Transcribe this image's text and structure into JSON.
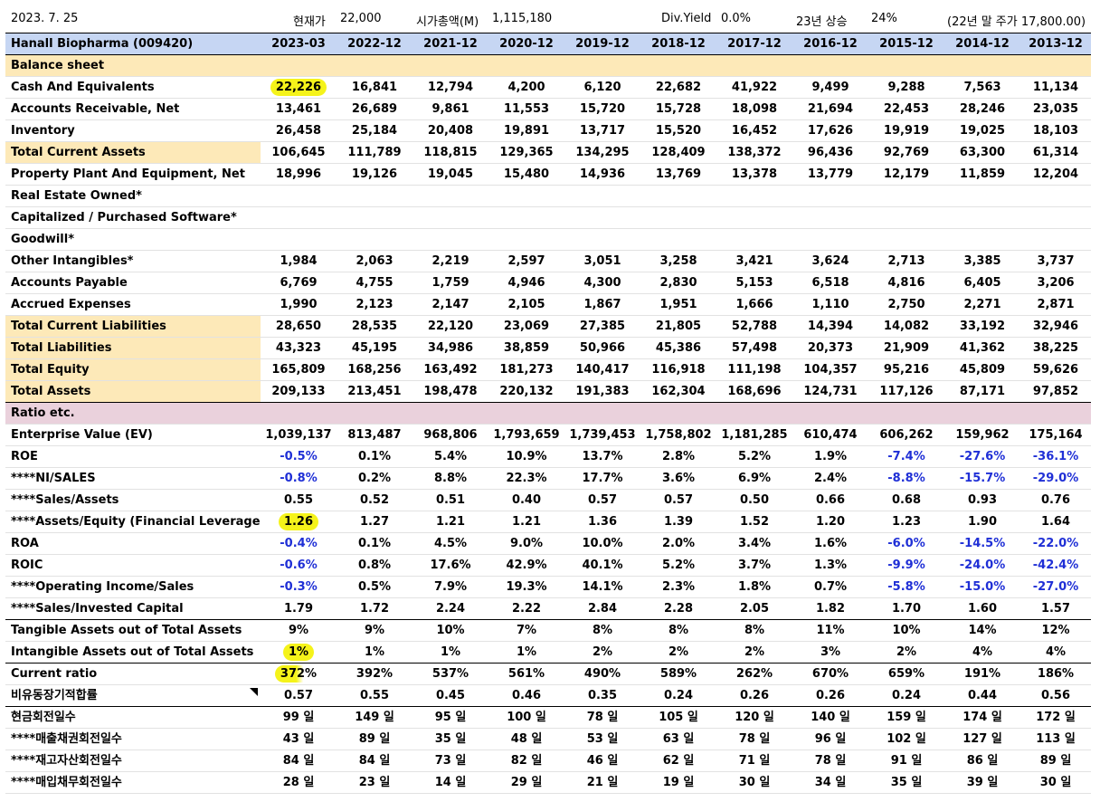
{
  "top": {
    "date": "2023. 7. 25",
    "price_label": "현재가",
    "price_value": "22,000",
    "mcap_label": "시가총액(M)",
    "mcap_value": "1,115,180",
    "div_label": "Div.Yield",
    "div_value": "0.0%",
    "rise_label": "23년 상승",
    "rise_value": "24%",
    "prev_price_note": "(22년 말 주가 17,800.00)"
  },
  "header": {
    "company": "Hanall Biopharma (009420)",
    "periods": [
      "2023-03",
      "2022-12",
      "2021-12",
      "2020-12",
      "2019-12",
      "2018-12",
      "2017-12",
      "2016-12",
      "2015-12",
      "2014-12",
      "2013-12"
    ]
  },
  "sections": {
    "balance_sheet": "Balance sheet",
    "ratio": "Ratio etc."
  },
  "rows": [
    {
      "label": "Cash And Equivalents",
      "values": [
        "22,226",
        "16,841",
        "12,794",
        "4,200",
        "6,120",
        "22,682",
        "41,922",
        "9,499",
        "9,288",
        "7,563",
        "11,134"
      ]
    },
    {
      "label": "Accounts Receivable, Net",
      "values": [
        "13,461",
        "26,689",
        "9,861",
        "11,553",
        "15,720",
        "15,728",
        "18,098",
        "21,694",
        "22,453",
        "28,246",
        "23,035"
      ]
    },
    {
      "label": "Inventory",
      "values": [
        "26,458",
        "25,184",
        "20,408",
        "19,891",
        "13,717",
        "15,520",
        "16,452",
        "17,626",
        "19,919",
        "19,025",
        "18,103"
      ]
    },
    {
      "label": "Total Current Assets",
      "values": [
        "106,645",
        "111,789",
        "118,815",
        "129,365",
        "134,295",
        "128,409",
        "138,372",
        "96,436",
        "92,769",
        "63,300",
        "61,314"
      ]
    },
    {
      "label": "Property Plant And Equipment, Net",
      "values": [
        "18,996",
        "19,126",
        "19,045",
        "15,480",
        "14,936",
        "13,769",
        "13,378",
        "13,779",
        "12,179",
        "11,859",
        "12,204"
      ]
    },
    {
      "label": "Real Estate Owned*",
      "values": [
        "",
        "",
        "",
        "",
        "",
        "",
        "",
        "",
        "",
        "",
        ""
      ]
    },
    {
      "label": "Capitalized / Purchased Software*",
      "values": [
        "",
        "",
        "",
        "",
        "",
        "",
        "",
        "",
        "",
        "",
        ""
      ]
    },
    {
      "label": "Goodwill*",
      "values": [
        "",
        "",
        "",
        "",
        "",
        "",
        "",
        "",
        "",
        "",
        ""
      ]
    },
    {
      "label": "Other Intangibles*",
      "values": [
        "1,984",
        "2,063",
        "2,219",
        "2,597",
        "3,051",
        "3,258",
        "3,421",
        "3,624",
        "2,713",
        "3,385",
        "3,737"
      ]
    },
    {
      "label": "Accounts Payable",
      "values": [
        "6,769",
        "4,755",
        "1,759",
        "4,946",
        "4,300",
        "2,830",
        "5,153",
        "6,518",
        "4,816",
        "6,405",
        "3,206"
      ]
    },
    {
      "label": "Accrued Expenses",
      "values": [
        "1,990",
        "2,123",
        "2,147",
        "2,105",
        "1,867",
        "1,951",
        "1,666",
        "1,110",
        "2,750",
        "2,271",
        "2,871"
      ]
    },
    {
      "label": "Total Current Liabilities",
      "values": [
        "28,650",
        "28,535",
        "22,120",
        "23,069",
        "27,385",
        "21,805",
        "52,788",
        "14,394",
        "14,082",
        "33,192",
        "32,946"
      ]
    },
    {
      "label": "Total Liabilities",
      "values": [
        "43,323",
        "45,195",
        "34,986",
        "38,859",
        "50,966",
        "45,386",
        "57,498",
        "20,373",
        "21,909",
        "41,362",
        "38,225"
      ]
    },
    {
      "label": "Total Equity",
      "values": [
        "165,809",
        "168,256",
        "163,492",
        "181,273",
        "140,417",
        "116,918",
        "111,198",
        "104,357",
        "95,216",
        "45,809",
        "59,626"
      ]
    },
    {
      "label": "Total Assets",
      "values": [
        "209,133",
        "213,451",
        "198,478",
        "220,132",
        "191,383",
        "162,304",
        "168,696",
        "124,731",
        "117,126",
        "87,171",
        "97,852"
      ]
    },
    {
      "label": "Enterprise Value (EV)",
      "values": [
        "1,039,137",
        "813,487",
        "968,806",
        "1,793,659",
        "1,739,453",
        "1,758,802",
        "1,181,285",
        "610,474",
        "606,262",
        "159,962",
        "175,164"
      ]
    },
    {
      "label": "ROE",
      "values": [
        "-0.5%",
        "0.1%",
        "5.4%",
        "10.9%",
        "13.7%",
        "2.8%",
        "5.2%",
        "1.9%",
        "-7.4%",
        "-27.6%",
        "-36.1%"
      ]
    },
    {
      "label": "****NI/SALES",
      "values": [
        "-0.8%",
        "0.2%",
        "8.8%",
        "22.3%",
        "17.7%",
        "3.6%",
        "6.9%",
        "2.4%",
        "-8.8%",
        "-15.7%",
        "-29.0%"
      ]
    },
    {
      "label": "****Sales/Assets",
      "values": [
        "0.55",
        "0.52",
        "0.51",
        "0.40",
        "0.57",
        "0.57",
        "0.50",
        "0.66",
        "0.68",
        "0.93",
        "0.76"
      ]
    },
    {
      "label": "****Assets/Equity (Financial Leverage)",
      "values": [
        "1.26",
        "1.27",
        "1.21",
        "1.21",
        "1.36",
        "1.39",
        "1.52",
        "1.20",
        "1.23",
        "1.90",
        "1.64"
      ]
    },
    {
      "label": "ROA",
      "values": [
        "-0.4%",
        "0.1%",
        "4.5%",
        "9.0%",
        "10.0%",
        "2.0%",
        "3.4%",
        "1.6%",
        "-6.0%",
        "-14.5%",
        "-22.0%"
      ]
    },
    {
      "label": "ROIC",
      "values": [
        "-0.6%",
        "0.8%",
        "17.6%",
        "42.9%",
        "40.1%",
        "5.2%",
        "3.7%",
        "1.3%",
        "-9.9%",
        "-24.0%",
        "-42.4%"
      ]
    },
    {
      "label": "****Operating Income/Sales",
      "values": [
        "-0.3%",
        "0.5%",
        "7.9%",
        "19.3%",
        "14.1%",
        "2.3%",
        "1.8%",
        "0.7%",
        "-5.8%",
        "-15.0%",
        "-27.0%"
      ]
    },
    {
      "label": "****Sales/Invested Capital",
      "values": [
        "1.79",
        "1.72",
        "2.24",
        "2.22",
        "2.84",
        "2.28",
        "2.05",
        "1.82",
        "1.70",
        "1.60",
        "1.57"
      ]
    },
    {
      "label": "Tangible Assets out of Total Assets",
      "values": [
        "9%",
        "9%",
        "10%",
        "7%",
        "8%",
        "8%",
        "8%",
        "11%",
        "10%",
        "14%",
        "12%"
      ]
    },
    {
      "label": "Intangible Assets out of Total Assets",
      "values": [
        "1%",
        "1%",
        "1%",
        "1%",
        "2%",
        "2%",
        "2%",
        "3%",
        "2%",
        "4%",
        "4%"
      ]
    },
    {
      "label": "Current ratio",
      "values": [
        "372%",
        "392%",
        "537%",
        "561%",
        "490%",
        "589%",
        "262%",
        "670%",
        "659%",
        "191%",
        "186%"
      ]
    },
    {
      "label": "비유동장기적합률",
      "values": [
        "0.57",
        "0.55",
        "0.45",
        "0.46",
        "0.35",
        "0.24",
        "0.26",
        "0.26",
        "0.24",
        "0.44",
        "0.56"
      ]
    },
    {
      "label": "현금회전일수",
      "values": [
        "99 일",
        "149 일",
        "95 일",
        "100 일",
        "78 일",
        "105 일",
        "120 일",
        "140 일",
        "159 일",
        "174 일",
        "172 일"
      ]
    },
    {
      "label": "****매출채권회전일수",
      "values": [
        "43 일",
        "89 일",
        "35 일",
        "48 일",
        "53 일",
        "63 일",
        "78 일",
        "96 일",
        "102 일",
        "127 일",
        "113 일"
      ]
    },
    {
      "label": "****재고자산회전일수",
      "values": [
        "84 일",
        "84 일",
        "73 일",
        "82 일",
        "46 일",
        "62 일",
        "71 일",
        "78 일",
        "91 일",
        "86 일",
        "89 일"
      ]
    },
    {
      "label": "****매입채무회전일수",
      "values": [
        "28 일",
        "23 일",
        "14 일",
        "29 일",
        "21 일",
        "19 일",
        "30 일",
        "34 일",
        "35 일",
        "39 일",
        "30 일"
      ]
    }
  ],
  "colors": {
    "header_bg": "#c6d6f3",
    "section_bg": "#fde9b8",
    "ratio_section_bg": "#ead1dc",
    "negative_text": "#1f2fd6",
    "highlight": "#f5f31a"
  }
}
